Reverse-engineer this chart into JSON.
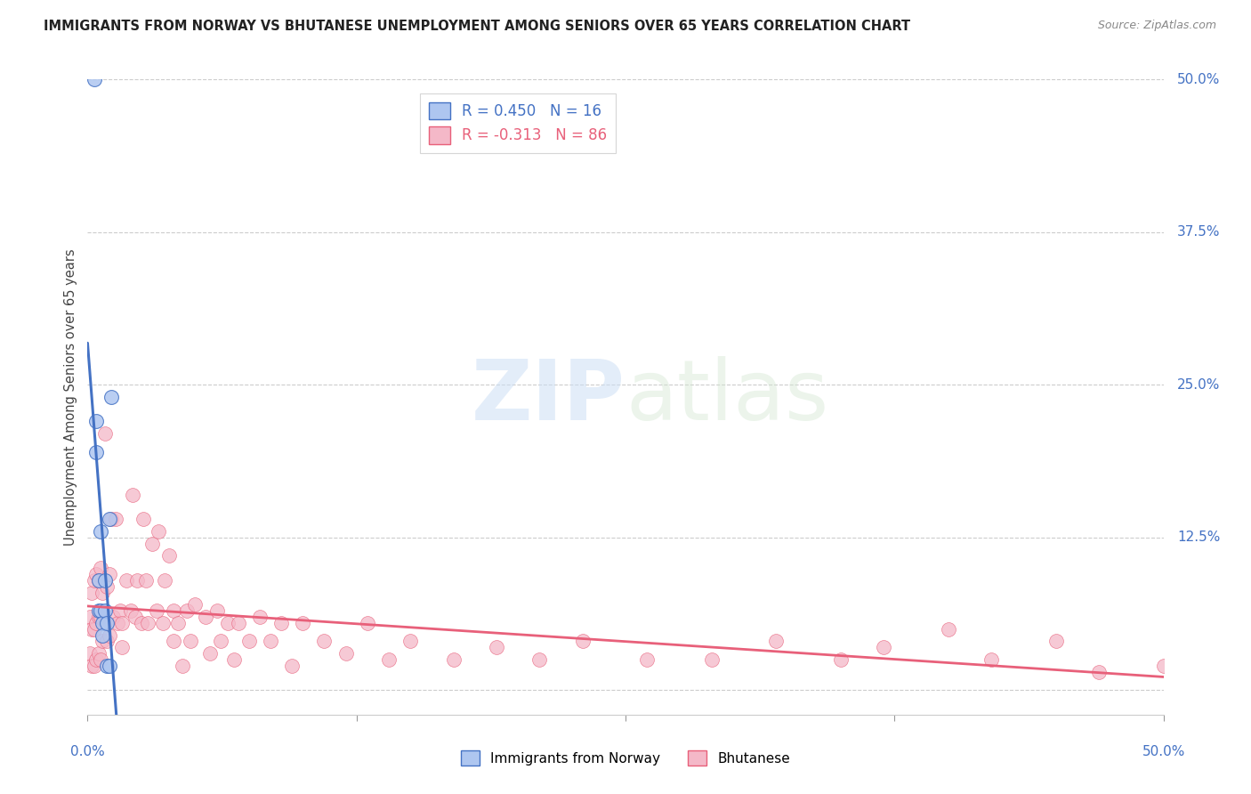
{
  "title": "IMMIGRANTS FROM NORWAY VS BHUTANESE UNEMPLOYMENT AMONG SENIORS OVER 65 YEARS CORRELATION CHART",
  "source": "Source: ZipAtlas.com",
  "ylabel": "Unemployment Among Seniors over 65 years",
  "norway_R": 0.45,
  "norway_N": 16,
  "bhutanese_R": -0.313,
  "bhutanese_N": 86,
  "xlim": [
    0.0,
    0.5
  ],
  "ylim": [
    -0.02,
    0.5
  ],
  "yticks": [
    0.0,
    0.125,
    0.25,
    0.375,
    0.5
  ],
  "ytick_labels": [
    "",
    "12.5%",
    "25.0%",
    "37.5%",
    "50.0%"
  ],
  "norway_color": "#aec6f0",
  "norway_line_color": "#4472c4",
  "bhutanese_color": "#f4b8c8",
  "bhutanese_line_color": "#e8607a",
  "norway_x": [
    0.003,
    0.004,
    0.004,
    0.005,
    0.005,
    0.006,
    0.006,
    0.007,
    0.007,
    0.008,
    0.008,
    0.009,
    0.009,
    0.01,
    0.01,
    0.011
  ],
  "norway_y": [
    0.5,
    0.22,
    0.195,
    0.09,
    0.065,
    0.13,
    0.065,
    0.055,
    0.045,
    0.09,
    0.065,
    0.055,
    0.02,
    0.14,
    0.02,
    0.24
  ],
  "bhutanese_x": [
    0.001,
    0.001,
    0.002,
    0.002,
    0.002,
    0.003,
    0.003,
    0.003,
    0.004,
    0.004,
    0.004,
    0.005,
    0.005,
    0.005,
    0.006,
    0.006,
    0.006,
    0.007,
    0.007,
    0.008,
    0.008,
    0.009,
    0.009,
    0.01,
    0.01,
    0.011,
    0.012,
    0.013,
    0.014,
    0.015,
    0.016,
    0.016,
    0.018,
    0.02,
    0.021,
    0.022,
    0.023,
    0.025,
    0.026,
    0.027,
    0.028,
    0.03,
    0.032,
    0.033,
    0.035,
    0.036,
    0.038,
    0.04,
    0.04,
    0.042,
    0.044,
    0.046,
    0.048,
    0.05,
    0.055,
    0.057,
    0.06,
    0.062,
    0.065,
    0.068,
    0.07,
    0.075,
    0.08,
    0.085,
    0.09,
    0.095,
    0.1,
    0.11,
    0.12,
    0.13,
    0.14,
    0.15,
    0.17,
    0.19,
    0.21,
    0.23,
    0.26,
    0.29,
    0.32,
    0.35,
    0.37,
    0.4,
    0.42,
    0.45,
    0.47,
    0.5
  ],
  "bhutanese_y": [
    0.06,
    0.03,
    0.08,
    0.05,
    0.02,
    0.09,
    0.05,
    0.02,
    0.095,
    0.055,
    0.025,
    0.09,
    0.06,
    0.03,
    0.1,
    0.06,
    0.025,
    0.08,
    0.04,
    0.21,
    0.055,
    0.085,
    0.04,
    0.095,
    0.045,
    0.14,
    0.06,
    0.14,
    0.055,
    0.065,
    0.055,
    0.035,
    0.09,
    0.065,
    0.16,
    0.06,
    0.09,
    0.055,
    0.14,
    0.09,
    0.055,
    0.12,
    0.065,
    0.13,
    0.055,
    0.09,
    0.11,
    0.065,
    0.04,
    0.055,
    0.02,
    0.065,
    0.04,
    0.07,
    0.06,
    0.03,
    0.065,
    0.04,
    0.055,
    0.025,
    0.055,
    0.04,
    0.06,
    0.04,
    0.055,
    0.02,
    0.055,
    0.04,
    0.03,
    0.055,
    0.025,
    0.04,
    0.025,
    0.035,
    0.025,
    0.04,
    0.025,
    0.025,
    0.04,
    0.025,
    0.035,
    0.05,
    0.025,
    0.04,
    0.015,
    0.02
  ]
}
